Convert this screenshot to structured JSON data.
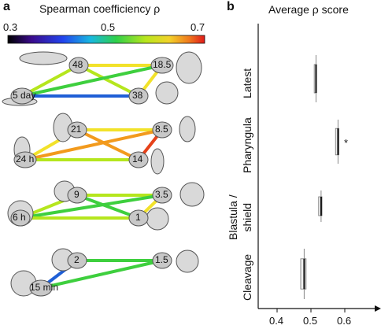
{
  "panel_a": {
    "letter": "a",
    "colorbar": {
      "title": "Spearman coefficiency ρ",
      "min_label": "0.3",
      "mid_label": "0.5",
      "max_label": "0.7"
    },
    "groups": [
      {
        "nodes": [
          "48",
          "18.5",
          "5 day",
          "38"
        ]
      },
      {
        "nodes": [
          "21",
          "8.5",
          "24 h",
          "14"
        ]
      },
      {
        "nodes": [
          "9",
          "3.5",
          "6 h",
          "1"
        ]
      },
      {
        "nodes": [
          "2",
          "1.5",
          "15 min"
        ]
      }
    ],
    "edge_colors": {
      "low_blue": "#1f5fd6",
      "green": "#3ecf3e",
      "yellow_green": "#b5e61d",
      "yellow": "#f2e22a",
      "orange": "#f29a1d",
      "red_orange": "#e6421a"
    }
  },
  "panel_b": {
    "letter": "b",
    "title": "Average ρ score",
    "star": "*",
    "categories": [
      "Latest",
      "Pharyngula",
      "Blastula / shield",
      "Cleavage"
    ],
    "category_lines": [
      [
        "Latest"
      ],
      [
        "Pharyngula"
      ],
      [
        "Blastula /",
        "shield"
      ],
      [
        "Cleavage"
      ]
    ],
    "x_ticks": [
      "0.4",
      "0.5",
      "0.6"
    ]
  },
  "chart_data": {
    "type": "box",
    "title": "Average ρ score",
    "categories": [
      "Latest",
      "Pharyngula",
      "Blastula / shield",
      "Cleavage"
    ],
    "series": [
      {
        "values": [
          0.515,
          0.58,
          0.53,
          0.48
        ]
      }
    ],
    "ranges": [
      [
        0.512,
        0.518
      ],
      [
        0.575,
        0.585
      ],
      [
        0.525,
        0.535
      ],
      [
        0.472,
        0.488
      ]
    ],
    "significance": [
      "",
      "*",
      "",
      ""
    ],
    "xlim": [
      0.33,
      0.68
    ],
    "x_ticks": [
      0.4,
      0.5,
      0.6
    ]
  }
}
